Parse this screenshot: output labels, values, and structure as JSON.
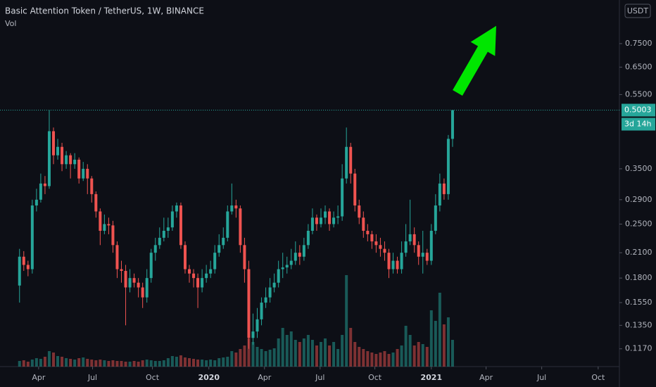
{
  "chart_data": {
    "type": "candlestick",
    "title": "Basic Attention Token / TetherUS, 1W, BINANCE",
    "volume_label": "Vol",
    "currency": "USDT",
    "last_price": 0.5003,
    "countdown": "3d 14h",
    "log_scale": true,
    "up_color": "#26a69a",
    "down_color": "#ef5350",
    "open": [
      0.172,
      0.205,
      0.195,
      0.19,
      0.28,
      0.29,
      0.32,
      0.315,
      0.44,
      0.38,
      0.4,
      0.36,
      0.38,
      0.36,
      0.37,
      0.33,
      0.35,
      0.33,
      0.3,
      0.27,
      0.24,
      0.25,
      0.248,
      0.22,
      0.19,
      0.188,
      0.17,
      0.18,
      0.175,
      0.17,
      0.16,
      0.18,
      0.21,
      0.22,
      0.23,
      0.24,
      0.245,
      0.27,
      0.28,
      0.22,
      0.19,
      0.185,
      0.18,
      0.17,
      0.18,
      0.185,
      0.19,
      0.21,
      0.22,
      0.23,
      0.27,
      0.28,
      0.275,
      0.22,
      0.19,
      0.125,
      0.13,
      0.14,
      0.155,
      0.16,
      0.17,
      0.175,
      0.19,
      0.192,
      0.195,
      0.2,
      0.21,
      0.205,
      0.22,
      0.24,
      0.26,
      0.25,
      0.26,
      0.27,
      0.25,
      0.26,
      0.262,
      0.33,
      0.4,
      0.34,
      0.28,
      0.26,
      0.24,
      0.235,
      0.225,
      0.22,
      0.215,
      0.21,
      0.19,
      0.2,
      0.19,
      0.21,
      0.225,
      0.235,
      0.22,
      0.205,
      0.21,
      0.2,
      0.24,
      0.28,
      0.32,
      0.3,
      0.42
    ],
    "high": [
      0.215,
      0.212,
      0.2,
      0.29,
      0.31,
      0.34,
      0.335,
      0.5003,
      0.45,
      0.42,
      0.41,
      0.39,
      0.385,
      0.385,
      0.375,
      0.365,
      0.36,
      0.335,
      0.305,
      0.275,
      0.265,
      0.26,
      0.255,
      0.225,
      0.2,
      0.195,
      0.19,
      0.185,
      0.18,
      0.175,
      0.19,
      0.215,
      0.23,
      0.245,
      0.26,
      0.26,
      0.28,
      0.285,
      0.285,
      0.225,
      0.195,
      0.19,
      0.185,
      0.19,
      0.195,
      0.2,
      0.22,
      0.235,
      0.245,
      0.28,
      0.32,
      0.29,
      0.28,
      0.23,
      0.2,
      0.145,
      0.15,
      0.16,
      0.17,
      0.18,
      0.185,
      0.2,
      0.21,
      0.205,
      0.215,
      0.225,
      0.22,
      0.23,
      0.25,
      0.275,
      0.265,
      0.275,
      0.28,
      0.275,
      0.27,
      0.28,
      0.36,
      0.45,
      0.41,
      0.35,
      0.29,
      0.27,
      0.25,
      0.24,
      0.235,
      0.23,
      0.225,
      0.215,
      0.21,
      0.205,
      0.225,
      0.25,
      0.29,
      0.245,
      0.225,
      0.24,
      0.215,
      0.25,
      0.3,
      0.34,
      0.33,
      0.43,
      0.5003
    ],
    "low": [
      0.155,
      0.188,
      0.182,
      0.185,
      0.27,
      0.285,
      0.3,
      0.31,
      0.36,
      0.37,
      0.345,
      0.35,
      0.33,
      0.35,
      0.32,
      0.325,
      0.3,
      0.285,
      0.26,
      0.22,
      0.235,
      0.235,
      0.21,
      0.18,
      0.175,
      0.135,
      0.165,
      0.17,
      0.16,
      0.15,
      0.155,
      0.175,
      0.2,
      0.215,
      0.225,
      0.23,
      0.24,
      0.26,
      0.215,
      0.185,
      0.175,
      0.17,
      0.15,
      0.165,
      0.175,
      0.18,
      0.185,
      0.205,
      0.215,
      0.225,
      0.265,
      0.26,
      0.21,
      0.175,
      0.117,
      0.12,
      0.125,
      0.135,
      0.15,
      0.155,
      0.165,
      0.17,
      0.18,
      0.185,
      0.19,
      0.195,
      0.195,
      0.2,
      0.215,
      0.235,
      0.24,
      0.245,
      0.25,
      0.24,
      0.245,
      0.25,
      0.255,
      0.32,
      0.32,
      0.27,
      0.25,
      0.23,
      0.225,
      0.215,
      0.21,
      0.205,
      0.2,
      0.18,
      0.185,
      0.185,
      0.185,
      0.205,
      0.22,
      0.21,
      0.195,
      0.185,
      0.195,
      0.195,
      0.235,
      0.27,
      0.29,
      0.29,
      0.4
    ],
    "close": [
      0.205,
      0.195,
      0.19,
      0.28,
      0.29,
      0.32,
      0.315,
      0.44,
      0.38,
      0.4,
      0.36,
      0.38,
      0.36,
      0.37,
      0.33,
      0.35,
      0.33,
      0.3,
      0.27,
      0.24,
      0.25,
      0.248,
      0.22,
      0.19,
      0.188,
      0.17,
      0.18,
      0.175,
      0.17,
      0.16,
      0.18,
      0.21,
      0.22,
      0.23,
      0.24,
      0.245,
      0.27,
      0.28,
      0.22,
      0.19,
      0.185,
      0.18,
      0.17,
      0.18,
      0.185,
      0.19,
      0.21,
      0.22,
      0.23,
      0.27,
      0.28,
      0.275,
      0.22,
      0.19,
      0.125,
      0.13,
      0.14,
      0.155,
      0.16,
      0.17,
      0.175,
      0.19,
      0.192,
      0.195,
      0.2,
      0.21,
      0.205,
      0.22,
      0.24,
      0.26,
      0.25,
      0.26,
      0.27,
      0.25,
      0.26,
      0.262,
      0.33,
      0.4,
      0.34,
      0.28,
      0.26,
      0.24,
      0.235,
      0.225,
      0.22,
      0.215,
      0.21,
      0.19,
      0.2,
      0.19,
      0.21,
      0.225,
      0.235,
      0.22,
      0.205,
      0.21,
      0.2,
      0.24,
      0.28,
      0.32,
      0.3,
      0.42,
      0.5003
    ],
    "volume": [
      8,
      9,
      7,
      10,
      12,
      11,
      14,
      22,
      20,
      15,
      14,
      12,
      11,
      10,
      12,
      13,
      11,
      10,
      9,
      10,
      9,
      8,
      9,
      8,
      8,
      7,
      7,
      8,
      7,
      9,
      10,
      9,
      8,
      8,
      9,
      12,
      15,
      14,
      16,
      13,
      12,
      11,
      10,
      10,
      9,
      10,
      9,
      12,
      13,
      14,
      22,
      20,
      25,
      30,
      40,
      35,
      28,
      25,
      22,
      24,
      26,
      40,
      55,
      45,
      50,
      38,
      35,
      40,
      45,
      38,
      30,
      35,
      40,
      30,
      35,
      25,
      45,
      130,
      55,
      35,
      28,
      25,
      22,
      20,
      18,
      20,
      22,
      18,
      20,
      25,
      30,
      58,
      45,
      30,
      35,
      32,
      28,
      80,
      65,
      105,
      60,
      70,
      38
    ],
    "volume_ylim": [
      0,
      150
    ],
    "ylim": [
      0.105,
      0.978
    ],
    "yticks": [
      {
        "value": 0.75,
        "label": "0.7500"
      },
      {
        "value": 0.65,
        "label": "0.6500"
      },
      {
        "value": 0.55,
        "label": "0.5500"
      },
      {
        "value": 0.35,
        "label": "0.3500"
      },
      {
        "value": 0.29,
        "label": "0.2900"
      },
      {
        "value": 0.25,
        "label": "0.2500"
      },
      {
        "value": 0.21,
        "label": "0.2100"
      },
      {
        "value": 0.18,
        "label": "0.1800"
      },
      {
        "value": 0.155,
        "label": "0.1550"
      },
      {
        "value": 0.135,
        "label": "0.1350"
      },
      {
        "value": 0.117,
        "label": "0.1170"
      }
    ],
    "xlim": [
      -4.6,
      141.3
    ],
    "xticks": [
      {
        "value": 4.5,
        "label": "Apr"
      },
      {
        "value": 17.2,
        "label": "Jul"
      },
      {
        "value": 31.3,
        "label": "Oct"
      },
      {
        "value": 44.6,
        "label": "2020"
      },
      {
        "value": 57.7,
        "label": "Apr"
      },
      {
        "value": 70.8,
        "label": "Jul"
      },
      {
        "value": 83.7,
        "label": "Oct"
      },
      {
        "value": 97,
        "label": "2021"
      },
      {
        "value": 109.9,
        "label": "Apr"
      },
      {
        "value": 123,
        "label": "Jul"
      },
      {
        "value": 136.3,
        "label": "Oct"
      }
    ]
  }
}
